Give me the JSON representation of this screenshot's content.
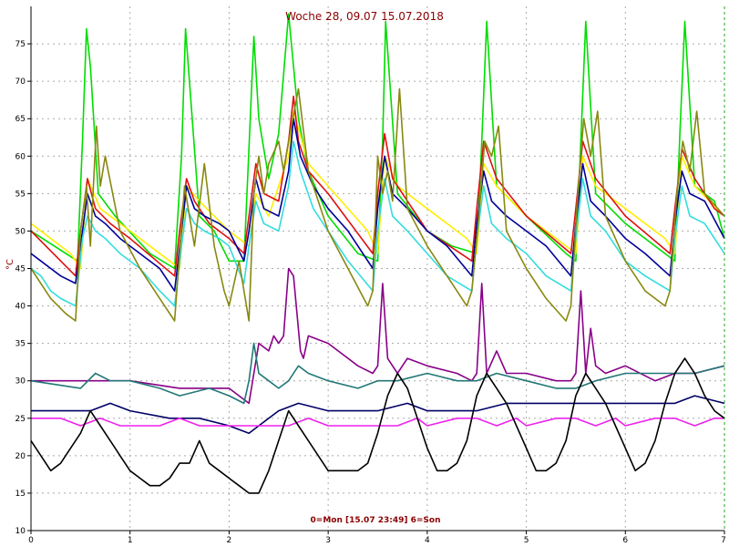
{
  "chart_data": {
    "type": "line",
    "title": "Woche 28, 09.07 15.07.2018",
    "xlabel": "0=Mon [15.07 23:49] 6=Son",
    "ylabel": "°C",
    "xlim": [
      0,
      7
    ],
    "ylim": [
      10,
      80
    ],
    "xticks": [
      0,
      1,
      2,
      3,
      4,
      5,
      6,
      7
    ],
    "yticks": [
      10,
      15,
      20,
      25,
      30,
      35,
      40,
      45,
      50,
      55,
      60,
      65,
      70,
      75
    ],
    "grid": true,
    "series": [
      {
        "color": "#00dd00",
        "x": [
          0,
          0.47,
          0.52,
          0.56,
          0.6,
          0.68,
          0.85,
          1.2,
          1.45,
          1.52,
          1.56,
          1.6,
          1.7,
          1.85,
          2.0,
          2.15,
          2.2,
          2.25,
          2.3,
          2.4,
          2.5,
          2.6,
          2.7,
          2.8,
          3.0,
          3.3,
          3.5,
          3.55,
          3.58,
          3.7,
          4.0,
          4.25,
          4.5,
          4.55,
          4.6,
          4.7,
          5.0,
          5.4,
          5.5,
          5.55,
          5.6,
          5.7,
          6.0,
          6.4,
          6.5,
          6.55,
          6.6,
          6.7,
          6.9,
          7.0
        ],
        "y": [
          50,
          46,
          62,
          77,
          72,
          55,
          52,
          47,
          45,
          60,
          77,
          70,
          52,
          50,
          46,
          46,
          61,
          76,
          65,
          57,
          63,
          79,
          65,
          58,
          52,
          47,
          46,
          62,
          78,
          55,
          50,
          48,
          47,
          62,
          78,
          56,
          52,
          47,
          46,
          62,
          78,
          55,
          51,
          47,
          46,
          63,
          78,
          56,
          54,
          49
        ]
      },
      {
        "color": "#ffee00",
        "x": [
          0,
          0.4,
          0.5,
          0.57,
          0.7,
          1.0,
          1.4,
          1.5,
          1.57,
          1.7,
          2.0,
          2.2,
          2.27,
          2.4,
          2.6,
          2.65,
          2.8,
          3.0,
          3.4,
          3.5,
          3.57,
          3.7,
          4.0,
          4.4,
          4.5,
          4.57,
          4.7,
          5.0,
          5.4,
          5.5,
          5.57,
          5.7,
          6.0,
          6.4,
          6.5,
          6.57,
          6.7,
          7.0
        ],
        "y": [
          51,
          47,
          45,
          57,
          53,
          50,
          46,
          45,
          56,
          54,
          50,
          48,
          55,
          52,
          60,
          66,
          59,
          56,
          50,
          47,
          60,
          56,
          53,
          49,
          47,
          59,
          56,
          52,
          48,
          47,
          60,
          56,
          53,
          49,
          47,
          60,
          56,
          52
        ]
      },
      {
        "color": "#dd1111",
        "x": [
          0,
          0.45,
          0.5,
          0.57,
          0.65,
          0.8,
          1.0,
          1.45,
          1.5,
          1.57,
          1.65,
          1.8,
          2.0,
          2.15,
          2.2,
          2.27,
          2.35,
          2.5,
          2.6,
          2.65,
          2.7,
          2.8,
          3.0,
          3.45,
          3.5,
          3.57,
          3.65,
          3.8,
          4.0,
          4.45,
          4.5,
          4.57,
          4.7,
          5.0,
          5.45,
          5.5,
          5.57,
          5.7,
          6.0,
          6.45,
          6.5,
          6.57,
          6.7,
          6.9,
          7.0
        ],
        "y": [
          50,
          44,
          50,
          57,
          53,
          51,
          49,
          44,
          50,
          57,
          54,
          51,
          49,
          47,
          52,
          59,
          55,
          54,
          62,
          68,
          62,
          58,
          55,
          47,
          55,
          63,
          57,
          54,
          50,
          46,
          53,
          62,
          57,
          52,
          47,
          53,
          62,
          57,
          52,
          47,
          53,
          61,
          57,
          53,
          52
        ]
      },
      {
        "color": "#000099",
        "x": [
          0,
          0.1,
          0.2,
          0.3,
          0.45,
          0.52,
          0.57,
          0.65,
          0.75,
          0.9,
          1.1,
          1.3,
          1.45,
          1.52,
          1.57,
          1.65,
          1.75,
          1.9,
          2.0,
          2.15,
          2.2,
          2.27,
          2.35,
          2.5,
          2.6,
          2.65,
          2.72,
          2.85,
          3.0,
          3.2,
          3.45,
          3.5,
          3.57,
          3.65,
          3.8,
          4.0,
          4.2,
          4.45,
          4.5,
          4.57,
          4.65,
          4.8,
          5.0,
          5.2,
          5.45,
          5.5,
          5.57,
          5.65,
          5.8,
          6.0,
          6.2,
          6.45,
          6.5,
          6.57,
          6.65,
          6.8,
          7.0
        ],
        "y": [
          47,
          46,
          45,
          44,
          43,
          50,
          55,
          52,
          51,
          49,
          47,
          45,
          42,
          50,
          56,
          53,
          52,
          51,
          50,
          46,
          50,
          57,
          53,
          52,
          58,
          65,
          60,
          56,
          53,
          50,
          45,
          53,
          60,
          55,
          53,
          50,
          48,
          44,
          51,
          58,
          54,
          52,
          50,
          48,
          44,
          51,
          59,
          54,
          52,
          49,
          47,
          44,
          51,
          58,
          55,
          54,
          49
        ]
      },
      {
        "color": "#33dddd",
        "x": [
          0,
          0.1,
          0.2,
          0.3,
          0.45,
          0.52,
          0.57,
          0.65,
          0.75,
          0.9,
          1.1,
          1.3,
          1.45,
          1.52,
          1.57,
          1.65,
          1.75,
          1.9,
          2.0,
          2.15,
          2.2,
          2.27,
          2.35,
          2.5,
          2.6,
          2.65,
          2.72,
          2.85,
          3.0,
          3.2,
          3.45,
          3.5,
          3.57,
          3.65,
          3.8,
          4.0,
          4.2,
          4.45,
          4.5,
          4.57,
          4.65,
          4.8,
          5.0,
          5.2,
          5.45,
          5.5,
          5.57,
          5.65,
          5.8,
          6.0,
          6.2,
          6.45,
          6.5,
          6.57,
          6.65,
          6.8,
          7.0
        ],
        "y": [
          45,
          44,
          42,
          41,
          40,
          49,
          52,
          50,
          49,
          47,
          45,
          42,
          40,
          48,
          53,
          51,
          50,
          49,
          48,
          43,
          48,
          54,
          51,
          50,
          56,
          62,
          58,
          53,
          50,
          46,
          42,
          50,
          57,
          52,
          50,
          47,
          44,
          42,
          49,
          56,
          51,
          49,
          47,
          44,
          42,
          49,
          57,
          52,
          50,
          46,
          44,
          42,
          49,
          56,
          52,
          51,
          47
        ]
      },
      {
        "color": "#888811",
        "x": [
          0,
          0.2,
          0.35,
          0.45,
          0.5,
          0.56,
          0.6,
          0.66,
          0.7,
          0.75,
          0.9,
          1.1,
          1.3,
          1.45,
          1.55,
          1.65,
          1.75,
          1.85,
          1.95,
          2.0,
          2.1,
          2.2,
          2.25,
          2.3,
          2.35,
          2.4,
          2.5,
          2.55,
          2.6,
          2.7,
          2.8,
          3.0,
          3.2,
          3.4,
          3.45,
          3.5,
          3.55,
          3.6,
          3.65,
          3.72,
          3.8,
          4.0,
          4.2,
          4.4,
          4.45,
          4.52,
          4.58,
          4.65,
          4.72,
          4.8,
          5.0,
          5.2,
          5.4,
          5.45,
          5.52,
          5.58,
          5.65,
          5.72,
          5.8,
          6.0,
          6.2,
          6.4,
          6.45,
          6.52,
          6.58,
          6.65,
          6.72,
          6.8,
          7.0
        ],
        "y": [
          45,
          41,
          39,
          38,
          50,
          56,
          48,
          64,
          56,
          60,
          50,
          45,
          41,
          38,
          56,
          48,
          59,
          48,
          42,
          40,
          46,
          38,
          55,
          60,
          55,
          59,
          62,
          58,
          62,
          69,
          58,
          50,
          45,
          40,
          42,
          60,
          55,
          58,
          54,
          69,
          53,
          48,
          44,
          40,
          42,
          52,
          62,
          60,
          64,
          50,
          45,
          41,
          38,
          40,
          55,
          65,
          60,
          66,
          52,
          46,
          42,
          40,
          42,
          55,
          62,
          58,
          66,
          55,
          52
        ]
      },
      {
        "color": "#880088",
        "x": [
          0,
          0.5,
          1.0,
          1.5,
          1.8,
          2.0,
          2.2,
          2.3,
          2.4,
          2.45,
          2.5,
          2.55,
          2.6,
          2.65,
          2.72,
          2.75,
          2.8,
          3.0,
          3.3,
          3.45,
          3.5,
          3.55,
          3.6,
          3.65,
          3.7,
          3.8,
          4.0,
          4.3,
          4.45,
          4.5,
          4.55,
          4.6,
          4.7,
          4.8,
          5.0,
          5.3,
          5.45,
          5.5,
          5.55,
          5.6,
          5.65,
          5.7,
          5.8,
          6.0,
          6.3,
          6.5,
          6.7,
          7.0
        ],
        "y": [
          30,
          30,
          30,
          29,
          29,
          29,
          27,
          35,
          34,
          36,
          35,
          36,
          45,
          44,
          34,
          33,
          36,
          35,
          32,
          31,
          32,
          43,
          33,
          32,
          31,
          33,
          32,
          31,
          30,
          31,
          43,
          31,
          34,
          31,
          31,
          30,
          30,
          31,
          42,
          31,
          37,
          32,
          31,
          32,
          30,
          31,
          31,
          32
        ]
      },
      {
        "color": "#227777",
        "x": [
          0,
          0.5,
          0.65,
          0.8,
          1.0,
          1.3,
          1.5,
          1.8,
          2.0,
          2.15,
          2.2,
          2.25,
          2.3,
          2.4,
          2.5,
          2.6,
          2.7,
          2.8,
          3.0,
          3.3,
          3.5,
          3.7,
          4.0,
          4.3,
          4.5,
          4.7,
          5.0,
          5.3,
          5.5,
          5.7,
          6.0,
          6.3,
          6.5,
          6.7,
          7.0
        ],
        "y": [
          30,
          29,
          31,
          30,
          30,
          29,
          28,
          29,
          28,
          27,
          30,
          35,
          31,
          30,
          29,
          30,
          32,
          31,
          30,
          29,
          30,
          30,
          31,
          30,
          30,
          31,
          30,
          29,
          29,
          30,
          31,
          31,
          31,
          31,
          32
        ]
      },
      {
        "color": "#000066",
        "x": [
          0,
          0.3,
          0.6,
          0.8,
          1.0,
          1.4,
          1.7,
          2.0,
          2.2,
          2.3,
          2.5,
          2.7,
          3.0,
          3.3,
          3.5,
          3.8,
          4.0,
          4.3,
          4.5,
          4.8,
          5.0,
          5.3,
          5.5,
          5.8,
          6.0,
          6.3,
          6.5,
          6.7,
          7.0
        ],
        "y": [
          26,
          26,
          26,
          27,
          26,
          25,
          25,
          24,
          23,
          24,
          26,
          27,
          26,
          26,
          26,
          27,
          26,
          26,
          26,
          27,
          27,
          27,
          27,
          27,
          27,
          27,
          27,
          28,
          27
        ]
      },
      {
        "color": "#ee22ee",
        "x": [
          0,
          0.3,
          0.5,
          0.7,
          0.9,
          1.0,
          1.3,
          1.5,
          1.7,
          1.9,
          2.0,
          2.2,
          2.4,
          2.6,
          2.8,
          3.0,
          3.3,
          3.5,
          3.7,
          3.9,
          4.0,
          4.3,
          4.5,
          4.7,
          4.9,
          5.0,
          5.3,
          5.5,
          5.7,
          5.9,
          6.0,
          6.3,
          6.5,
          6.7,
          6.9,
          7.0
        ],
        "y": [
          25,
          25,
          24,
          25,
          24,
          24,
          24,
          25,
          24,
          24,
          24,
          24,
          24,
          24,
          25,
          24,
          24,
          24,
          24,
          25,
          24,
          25,
          25,
          24,
          25,
          24,
          25,
          25,
          24,
          25,
          24,
          25,
          25,
          24,
          25,
          25
        ]
      },
      {
        "color": "#000000",
        "x": [
          0,
          0.1,
          0.2,
          0.3,
          0.4,
          0.5,
          0.6,
          0.7,
          0.8,
          0.9,
          1.0,
          1.1,
          1.2,
          1.3,
          1.4,
          1.5,
          1.6,
          1.7,
          1.8,
          1.9,
          2.0,
          2.1,
          2.2,
          2.3,
          2.4,
          2.5,
          2.6,
          2.7,
          2.8,
          2.9,
          3.0,
          3.1,
          3.2,
          3.3,
          3.4,
          3.5,
          3.6,
          3.7,
          3.8,
          3.9,
          4.0,
          4.1,
          4.2,
          4.3,
          4.4,
          4.5,
          4.6,
          4.7,
          4.8,
          4.9,
          5.0,
          5.1,
          5.2,
          5.3,
          5.4,
          5.5,
          5.6,
          5.7,
          5.8,
          5.9,
          6.0,
          6.1,
          6.2,
          6.3,
          6.4,
          6.5,
          6.6,
          6.7,
          6.8,
          6.9,
          7.0
        ],
        "y": [
          22,
          20,
          18,
          19,
          21,
          23,
          26,
          24,
          22,
          20,
          18,
          17,
          16,
          16,
          17,
          19,
          19,
          22,
          19,
          18,
          17,
          16,
          15,
          15,
          18,
          22,
          26,
          24,
          22,
          20,
          18,
          18,
          18,
          18,
          19,
          23,
          28,
          31,
          29,
          25,
          21,
          18,
          18,
          19,
          22,
          28,
          31,
          29,
          27,
          24,
          21,
          18,
          18,
          19,
          22,
          28,
          31,
          29,
          27,
          24,
          21,
          18,
          19,
          22,
          27,
          31,
          33,
          31,
          28,
          26,
          25
        ]
      }
    ]
  }
}
